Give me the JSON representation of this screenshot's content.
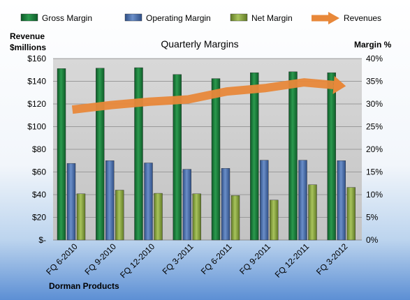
{
  "chart_data": {
    "type": "bar",
    "title": "Quarterly Margins",
    "left_axis_title": "Revenue\n$millions",
    "right_axis_title": "Margin %",
    "footer": "Dorman Products",
    "categories": [
      "FQ 6-2010",
      "FQ 9-2010",
      "FQ 12-2010",
      "FQ 3-2011",
      "FQ 6-2011",
      "FQ 9-2011",
      "FQ 12-2011",
      "FQ 3-2012"
    ],
    "left_axis": {
      "min": 0,
      "max": 160,
      "step": 20,
      "ticks": [
        "$-",
        "$20",
        "$40",
        "$60",
        "$80",
        "$100",
        "$120",
        "$140",
        "$160"
      ]
    },
    "right_axis": {
      "min": 0,
      "max": 40,
      "step": 5,
      "ticks": [
        "0%",
        "5%",
        "10%",
        "15%",
        "20%",
        "25%",
        "30%",
        "35%",
        "40%"
      ]
    },
    "legend_position": "top",
    "series": [
      {
        "name": "Gross Margin",
        "axis": "right",
        "kind": "bar",
        "color": "#1a7a3a",
        "values": [
          37.8,
          37.9,
          38.0,
          36.5,
          35.6,
          36.9,
          37.1,
          36.9
        ]
      },
      {
        "name": "Operating Margin",
        "axis": "right",
        "kind": "bar",
        "color": "#4a6fae",
        "values": [
          16.9,
          17.5,
          17.0,
          15.6,
          15.8,
          17.6,
          17.6,
          17.5
        ]
      },
      {
        "name": "Net Margin",
        "axis": "right",
        "kind": "bar",
        "color": "#8eaa44",
        "values": [
          10.2,
          11.0,
          10.3,
          10.2,
          9.8,
          8.8,
          12.2,
          11.6
        ]
      },
      {
        "name": "Revenues",
        "axis": "left",
        "kind": "line",
        "color": "#e8883a",
        "values": [
          115,
          119,
          122,
          124,
          131,
          134,
          139,
          136
        ]
      }
    ]
  }
}
